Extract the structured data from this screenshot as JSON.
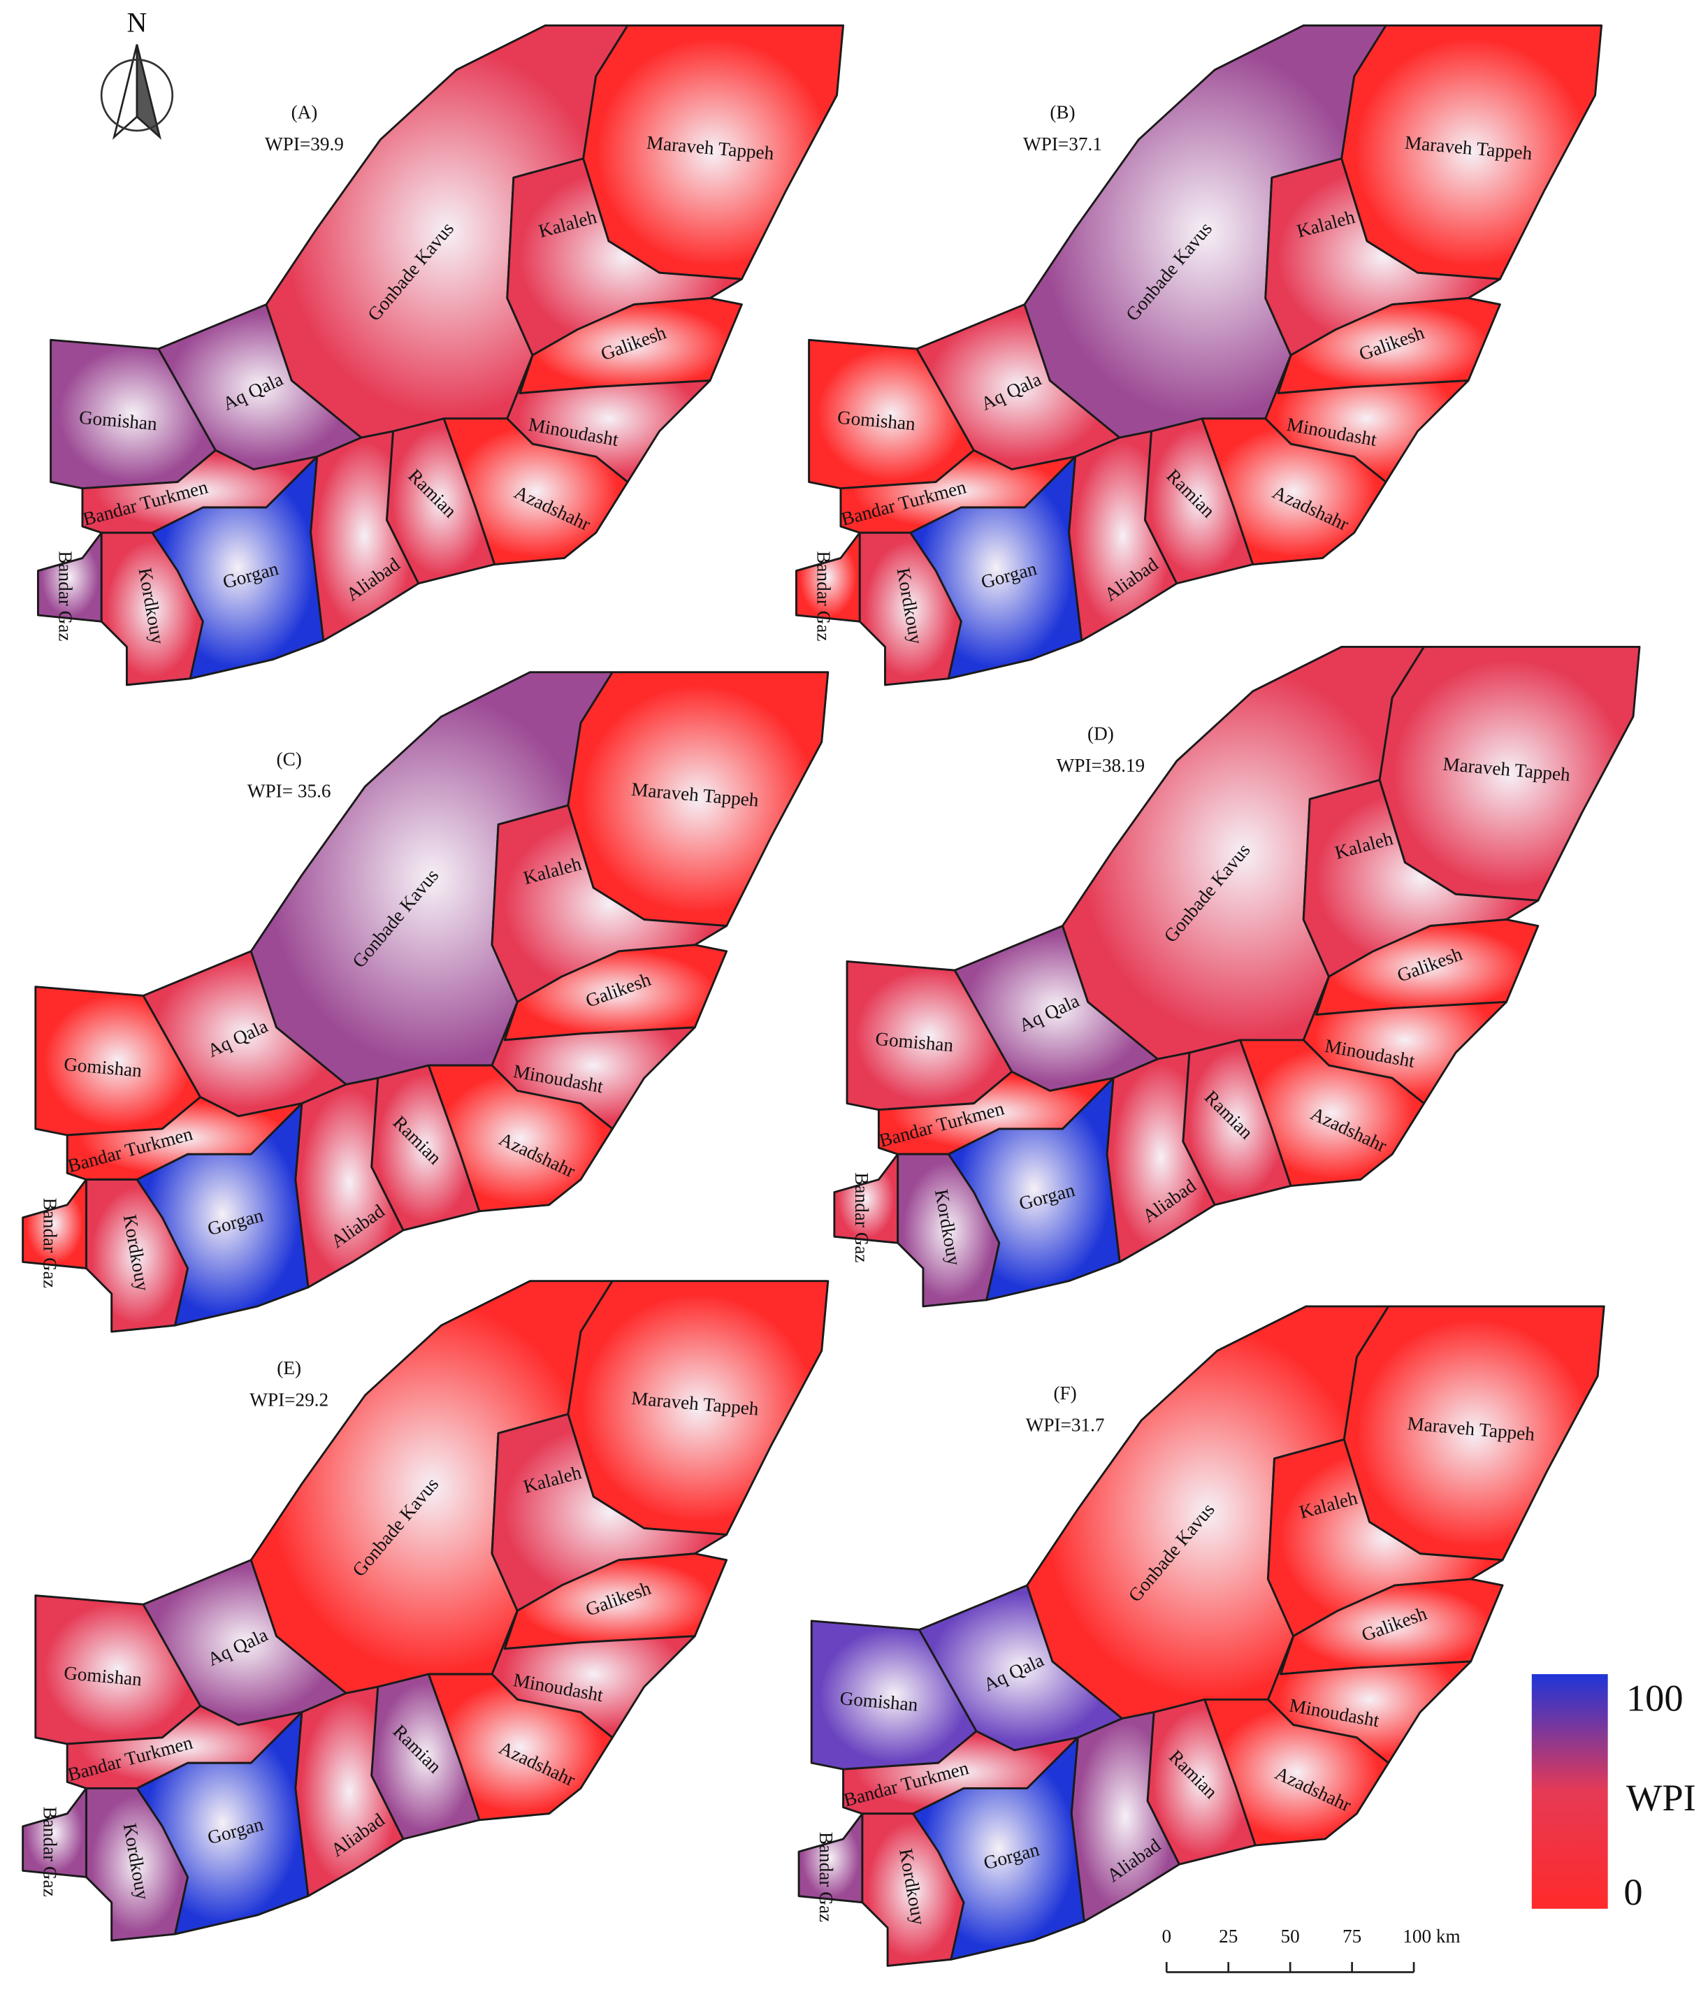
{
  "north": "N",
  "districts": [
    "Gomishan",
    "Aq Qala",
    "Gonbade Kavus",
    "Maraveh Tappeh",
    "Kalaleh",
    "Galikesh",
    "Minoudasht",
    "Azadshahr",
    "Ramian",
    "Aliabad",
    "Gorgan",
    "Bandar Turkmen",
    "Kordkouy",
    "Bandar Gaz"
  ],
  "panels": [
    {
      "label": "(A)",
      "wpi": "WPI=39.9",
      "colors": [
        "#9c4a94",
        "#9c4a94",
        "#e63a55",
        "#ff2a2a",
        "#e63a55",
        "#ff2a2a",
        "#e63a55",
        "#ff2a2a",
        "#e63a55",
        "#e63a55",
        "#1e35d8",
        "#e63a55",
        "#e63a55",
        "#9c4a94"
      ]
    },
    {
      "label": "(B)",
      "wpi": "WPI=37.1",
      "colors": [
        "#ff2a2a",
        "#e63a55",
        "#9c4a94",
        "#ff2a2a",
        "#e63a55",
        "#ff2a2a",
        "#ff2a2a",
        "#ff2a2a",
        "#e63a55",
        "#e63a55",
        "#1e35d8",
        "#ff2a2a",
        "#e63a55",
        "#ff2a2a"
      ]
    },
    {
      "label": "(C)",
      "wpi": "WPI= 35.6",
      "colors": [
        "#ff2a2a",
        "#e63a55",
        "#9c4a94",
        "#ff2a2a",
        "#e63a55",
        "#ff2a2a",
        "#e63a55",
        "#ff2a2a",
        "#e63a55",
        "#e63a55",
        "#1e35d8",
        "#ff2a2a",
        "#e63a55",
        "#ff2a2a"
      ]
    },
    {
      "label": "(D)",
      "wpi": "WPI=38.19",
      "colors": [
        "#e63a55",
        "#9c4a94",
        "#e63a55",
        "#e63a55",
        "#e63a55",
        "#ff2a2a",
        "#ff2a2a",
        "#ff2a2a",
        "#e63a55",
        "#e63a55",
        "#1e35d8",
        "#ff2a2a",
        "#9c4a94",
        "#e63a55"
      ]
    },
    {
      "label": "(E)",
      "wpi": "WPI=29.2",
      "colors": [
        "#e63a55",
        "#9c4a94",
        "#ff2a2a",
        "#ff2a2a",
        "#e63a55",
        "#ff2a2a",
        "#e63a55",
        "#ff2a2a",
        "#9c4a94",
        "#e63a55",
        "#1e35d8",
        "#e63a55",
        "#9c4a94",
        "#9c4a94"
      ]
    },
    {
      "label": "(F)",
      "wpi": "WPI=31.7",
      "colors": [
        "#6a44c0",
        "#6a44c0",
        "#ff2a2a",
        "#ff2a2a",
        "#ff2a2a",
        "#ff2a2a",
        "#ff2a2a",
        "#ff2a2a",
        "#e63a55",
        "#9c4a94",
        "#1e35d8",
        "#e63a55",
        "#e63a55",
        "#9c4a94"
      ]
    }
  ],
  "legend": {
    "title": "WPI",
    "range": [
      0,
      100
    ],
    "colors": [
      "#ff2a2a",
      "#e63a55",
      "#1e35d8"
    ]
  },
  "scale_bar": {
    "ticks": [
      0,
      25,
      50,
      75,
      {
        "value": 100,
        "label": "100 km"
      }
    ]
  }
}
